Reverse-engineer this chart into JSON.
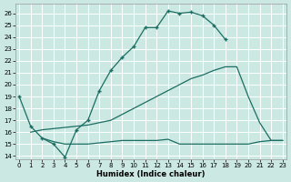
{
  "xlabel": "Humidex (Indice chaleur)",
  "bg_color": "#cce8e2",
  "line_color": "#1a6e64",
  "xlim_min": -0.3,
  "xlim_max": 23.3,
  "ylim_min": 13.7,
  "ylim_max": 26.8,
  "xticks": [
    0,
    1,
    2,
    3,
    4,
    5,
    6,
    7,
    8,
    9,
    10,
    11,
    12,
    13,
    14,
    15,
    16,
    17,
    18,
    19,
    20,
    21,
    22,
    23
  ],
  "yticks": [
    14,
    15,
    16,
    17,
    18,
    19,
    20,
    21,
    22,
    23,
    24,
    25,
    26
  ],
  "series": [
    {
      "x": [
        0,
        1,
        2,
        3,
        4,
        5,
        6,
        7,
        8,
        9,
        10,
        11,
        12,
        13,
        14,
        15,
        16,
        17,
        18
      ],
      "y": [
        19.0,
        16.5,
        15.5,
        15.0,
        13.9,
        16.2,
        17.0,
        19.5,
        21.2,
        22.3,
        23.2,
        24.8,
        24.8,
        26.2,
        26.0,
        26.1,
        25.8,
        25.0,
        23.8
      ],
      "has_markers": true
    },
    {
      "x": [
        1,
        2,
        3,
        4,
        5,
        6,
        7,
        8,
        9,
        10,
        11,
        12,
        13,
        14,
        15,
        16,
        17,
        18,
        19,
        20,
        21,
        22,
        23
      ],
      "y": [
        16.0,
        16.2,
        16.3,
        16.4,
        16.5,
        16.6,
        16.8,
        17.0,
        17.5,
        18.0,
        18.5,
        19.0,
        19.5,
        20.0,
        20.5,
        20.8,
        21.2,
        21.5,
        21.5,
        19.0,
        16.8,
        15.3,
        15.3
      ],
      "has_markers": false
    },
    {
      "x": [
        2,
        3,
        4,
        5,
        6,
        7,
        8,
        9,
        10,
        11,
        12,
        13,
        14,
        15,
        16,
        17,
        18,
        19,
        20,
        21,
        22,
        23
      ],
      "y": [
        15.5,
        15.2,
        15.0,
        15.0,
        15.0,
        15.1,
        15.2,
        15.3,
        15.3,
        15.3,
        15.3,
        15.4,
        15.0,
        15.0,
        15.0,
        15.0,
        15.0,
        15.0,
        15.0,
        15.2,
        15.3,
        15.3
      ],
      "has_markers": false
    }
  ]
}
